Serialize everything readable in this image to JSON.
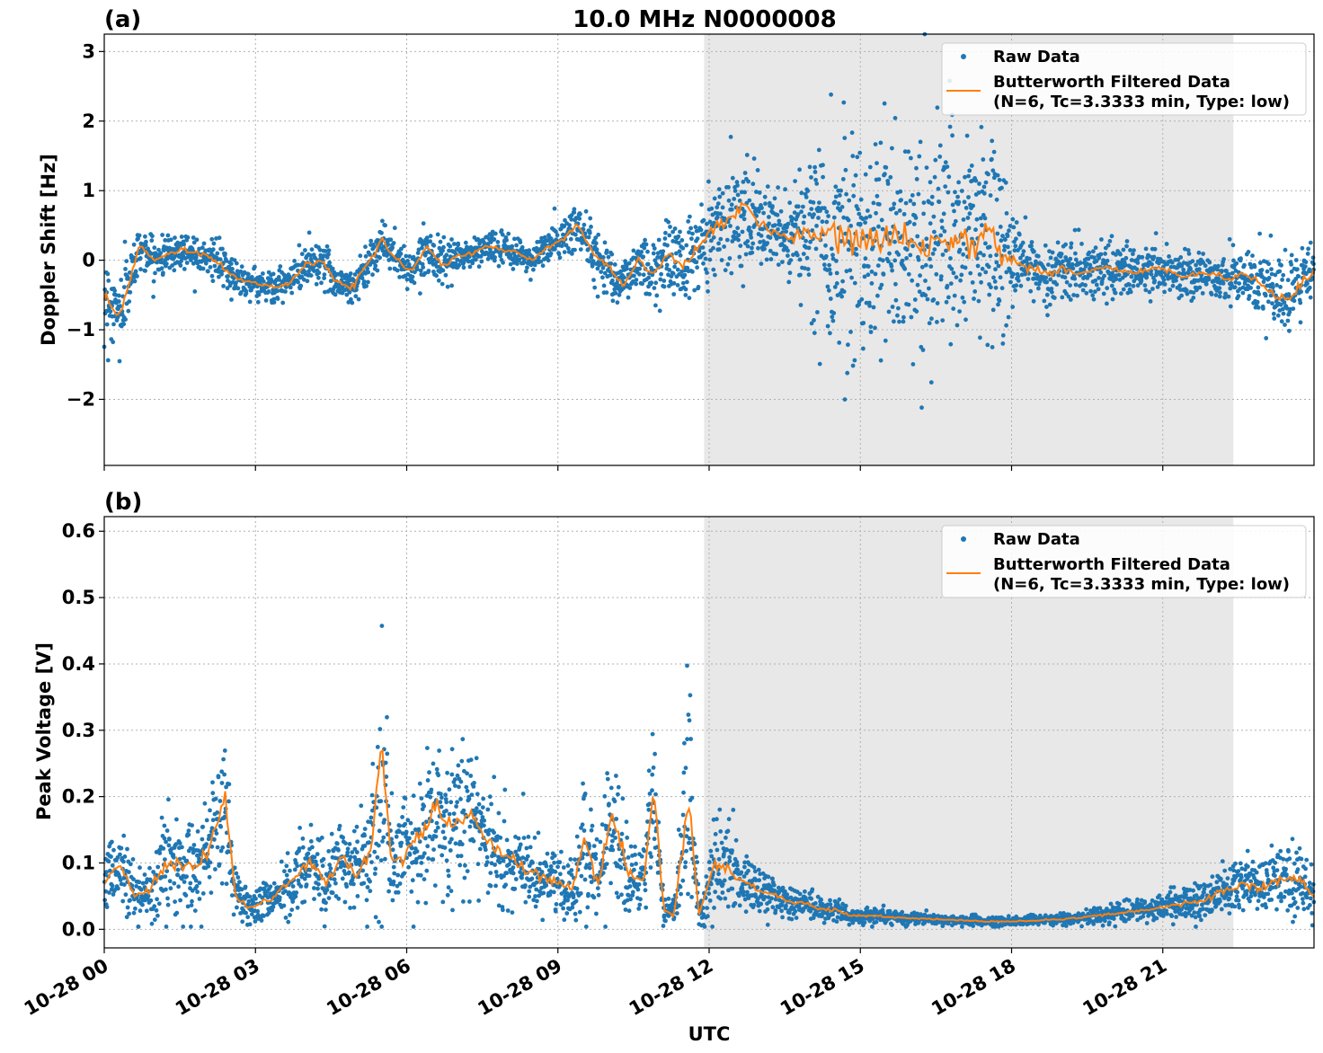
{
  "figure": {
    "title": "10.0 MHz N0000008",
    "xlabel": "UTC"
  },
  "colors": {
    "raw": "#1f77b4",
    "filtered": "#ff7f0e",
    "shade": "#e8e8e8"
  },
  "chart_data": [
    {
      "type": "scatter",
      "panel_label": "(a)",
      "ylabel": "Doppler Shift [Hz]",
      "xlim": [
        0,
        24
      ],
      "ylim": [
        -2.95,
        3.25
      ],
      "yticks": [
        -2,
        -1,
        0,
        1,
        2,
        3
      ],
      "ytick_labels": [
        "−2",
        "−1",
        "0",
        "1",
        "2",
        "3"
      ],
      "xticks": [
        0,
        3,
        6,
        9,
        12,
        15,
        18,
        21
      ],
      "xtick_labels": [
        "10-28 00",
        "10-28 03",
        "10-28 06",
        "10-28 09",
        "10-28 12",
        "10-28 15",
        "10-28 18",
        "10-28 21"
      ],
      "x_unit": "hours UTC on 10-28",
      "shaded_span": [
        11.9,
        22.4
      ],
      "grid": true,
      "legend": {
        "position": "top-right",
        "entries": [
          {
            "name": "Raw Data",
            "marker": "dot"
          },
          {
            "name": "Butterworth Filtered Data\n(N=6, Tc=3.3333 min, Type: low)",
            "marker": "line"
          }
        ]
      },
      "series": [
        {
          "name": "Raw Data",
          "kind": "scatter",
          "x": [
            0.0,
            0.3,
            0.5,
            0.7,
            1.0,
            1.3,
            1.6,
            1.9,
            2.2,
            2.5,
            2.8,
            3.1,
            3.4,
            3.7,
            4.0,
            4.3,
            4.6,
            4.9,
            5.2,
            5.5,
            5.8,
            6.1,
            6.4,
            6.7,
            7.0,
            7.3,
            7.6,
            7.9,
            8.2,
            8.5,
            8.8,
            9.1,
            9.4,
            9.7,
            10.0,
            10.3,
            10.6,
            10.9,
            11.2,
            11.5,
            11.8,
            12.1,
            12.4,
            12.7,
            13.0,
            13.3,
            13.6,
            13.9,
            14.2,
            14.5,
            14.8,
            15.1,
            15.4,
            15.7,
            16.0,
            16.3,
            16.6,
            16.9,
            17.2,
            17.5,
            17.8,
            18.1,
            18.4,
            18.7,
            19.0,
            19.3,
            19.6,
            19.9,
            20.2,
            20.5,
            20.8,
            21.1,
            21.4,
            21.7,
            22.0,
            22.3,
            22.6,
            22.9,
            23.2,
            23.5,
            23.8,
            24.0
          ],
          "y": [
            -0.5,
            -0.8,
            -0.3,
            0.2,
            0.0,
            0.1,
            0.15,
            0.1,
            0.0,
            -0.2,
            -0.3,
            -0.35,
            -0.4,
            -0.3,
            -0.05,
            0.0,
            -0.3,
            -0.4,
            -0.1,
            0.3,
            0.0,
            -0.15,
            0.2,
            -0.1,
            0.05,
            0.1,
            0.2,
            0.15,
            0.1,
            0.0,
            0.2,
            0.3,
            0.5,
            0.1,
            -0.1,
            -0.35,
            0.0,
            -0.2,
            0.1,
            -0.1,
            0.2,
            0.5,
            0.6,
            0.8,
            0.5,
            0.4,
            0.3,
            0.4,
            0.35,
            0.3,
            0.35,
            0.2,
            0.3,
            0.35,
            0.3,
            0.2,
            0.3,
            0.4,
            0.2,
            0.45,
            0.1,
            -0.05,
            -0.1,
            -0.2,
            -0.1,
            -0.2,
            -0.15,
            -0.1,
            -0.15,
            -0.2,
            -0.1,
            -0.15,
            -0.25,
            -0.2,
            -0.2,
            -0.3,
            -0.2,
            -0.3,
            -0.5,
            -0.6,
            -0.3,
            -0.2
          ],
          "spread": [
            0.6,
            0.7,
            0.5,
            0.3,
            0.3,
            0.3,
            0.3,
            0.3,
            0.3,
            0.3,
            0.25,
            0.25,
            0.25,
            0.3,
            0.35,
            0.35,
            0.3,
            0.3,
            0.35,
            0.3,
            0.3,
            0.3,
            0.3,
            0.3,
            0.25,
            0.25,
            0.25,
            0.25,
            0.25,
            0.25,
            0.3,
            0.35,
            0.45,
            0.4,
            0.4,
            0.4,
            0.4,
            0.5,
            0.6,
            0.6,
            0.6,
            0.7,
            0.8,
            0.8,
            0.7,
            0.6,
            0.7,
            0.9,
            1.6,
            1.8,
            1.8,
            1.8,
            1.8,
            1.8,
            1.8,
            1.8,
            1.8,
            1.8,
            1.8,
            1.8,
            1.5,
            0.6,
            0.5,
            0.5,
            0.5,
            0.5,
            0.4,
            0.4,
            0.4,
            0.4,
            0.4,
            0.4,
            0.4,
            0.35,
            0.4,
            0.4,
            0.45,
            0.5,
            0.5,
            0.6,
            0.6,
            0.5
          ]
        },
        {
          "name": "Butterworth Filtered Data\n(N=6, Tc=3.3333 min, Type: low)",
          "kind": "line",
          "x": [
            0.0,
            0.3,
            0.5,
            0.7,
            1.0,
            1.3,
            1.6,
            1.9,
            2.2,
            2.5,
            2.8,
            3.1,
            3.4,
            3.7,
            4.0,
            4.3,
            4.6,
            4.9,
            5.2,
            5.5,
            5.8,
            6.1,
            6.4,
            6.7,
            7.0,
            7.3,
            7.6,
            7.9,
            8.2,
            8.5,
            8.8,
            9.1,
            9.4,
            9.7,
            10.0,
            10.3,
            10.6,
            10.9,
            11.2,
            11.5,
            11.8,
            12.1,
            12.4,
            12.7,
            13.0,
            13.3,
            13.6,
            13.9,
            14.2,
            14.5,
            14.8,
            15.1,
            15.4,
            15.7,
            16.0,
            16.3,
            16.6,
            16.9,
            17.2,
            17.5,
            17.8,
            18.1,
            18.4,
            18.7,
            19.0,
            19.3,
            19.6,
            19.9,
            20.2,
            20.5,
            20.8,
            21.1,
            21.4,
            21.7,
            22.0,
            22.3,
            22.6,
            22.9,
            23.2,
            23.5,
            23.8,
            24.0
          ],
          "y": [
            -0.5,
            -0.8,
            -0.3,
            0.2,
            0.0,
            0.1,
            0.15,
            0.1,
            0.0,
            -0.2,
            -0.3,
            -0.35,
            -0.4,
            -0.3,
            -0.05,
            0.0,
            -0.3,
            -0.4,
            -0.1,
            0.3,
            0.0,
            -0.15,
            0.2,
            -0.1,
            0.05,
            0.1,
            0.2,
            0.15,
            0.1,
            0.0,
            0.2,
            0.3,
            0.5,
            0.1,
            -0.1,
            -0.35,
            0.0,
            -0.2,
            0.1,
            -0.1,
            0.2,
            0.5,
            0.6,
            0.8,
            0.5,
            0.4,
            0.3,
            0.4,
            0.35,
            0.3,
            0.35,
            0.2,
            0.3,
            0.35,
            0.3,
            0.2,
            0.3,
            0.4,
            0.2,
            0.45,
            0.1,
            -0.05,
            -0.1,
            -0.2,
            -0.1,
            -0.2,
            -0.15,
            -0.1,
            -0.15,
            -0.2,
            -0.1,
            -0.15,
            -0.25,
            -0.2,
            -0.2,
            -0.3,
            -0.2,
            -0.3,
            -0.5,
            -0.6,
            -0.3,
            -0.2
          ]
        }
      ]
    },
    {
      "type": "scatter",
      "panel_label": "(b)",
      "ylabel": "Peak Voltage [V]",
      "xlim": [
        0,
        24
      ],
      "ylim": [
        -0.028,
        0.622
      ],
      "yticks": [
        0.0,
        0.1,
        0.2,
        0.3,
        0.4,
        0.5,
        0.6
      ],
      "ytick_labels": [
        "0.0",
        "0.1",
        "0.2",
        "0.3",
        "0.4",
        "0.5",
        "0.6"
      ],
      "xticks": [
        0,
        3,
        6,
        9,
        12,
        15,
        18,
        21
      ],
      "xtick_labels": [
        "10-28 00",
        "10-28 03",
        "10-28 06",
        "10-28 09",
        "10-28 12",
        "10-28 15",
        "10-28 18",
        "10-28 21"
      ],
      "x_unit": "hours UTC on 10-28",
      "shaded_span": [
        11.9,
        22.4
      ],
      "grid": true,
      "legend": {
        "position": "top-right",
        "entries": [
          {
            "name": "Raw Data",
            "marker": "dot"
          },
          {
            "name": "Butterworth Filtered Data\n(N=6, Tc=3.3333 min, Type: low)",
            "marker": "line"
          }
        ]
      },
      "series": [
        {
          "name": "Raw Data",
          "kind": "scatter",
          "x": [
            0.0,
            0.3,
            0.6,
            0.9,
            1.2,
            1.5,
            1.8,
            2.1,
            2.4,
            2.6,
            2.9,
            3.2,
            3.5,
            3.8,
            4.1,
            4.4,
            4.7,
            5.0,
            5.3,
            5.5,
            5.7,
            6.0,
            6.3,
            6.6,
            6.9,
            7.2,
            7.5,
            7.8,
            8.1,
            8.4,
            8.7,
            9.0,
            9.3,
            9.5,
            9.8,
            10.1,
            10.4,
            10.7,
            10.9,
            11.1,
            11.3,
            11.6,
            11.8,
            12.1,
            12.4,
            12.7,
            13.0,
            13.3,
            13.6,
            13.9,
            14.2,
            14.5,
            14.8,
            15.1,
            15.4,
            15.7,
            16.0,
            16.3,
            16.6,
            16.9,
            17.2,
            17.5,
            17.8,
            18.1,
            18.4,
            18.7,
            19.0,
            19.3,
            19.6,
            19.9,
            20.2,
            20.5,
            20.8,
            21.1,
            21.4,
            21.7,
            22.0,
            22.3,
            22.6,
            22.9,
            23.2,
            23.5,
            23.8,
            24.0
          ],
          "y": [
            0.07,
            0.1,
            0.05,
            0.06,
            0.1,
            0.1,
            0.09,
            0.12,
            0.2,
            0.05,
            0.03,
            0.04,
            0.06,
            0.08,
            0.1,
            0.07,
            0.11,
            0.08,
            0.12,
            0.28,
            0.1,
            0.12,
            0.15,
            0.18,
            0.15,
            0.18,
            0.14,
            0.12,
            0.1,
            0.09,
            0.08,
            0.07,
            0.06,
            0.14,
            0.07,
            0.18,
            0.08,
            0.07,
            0.22,
            0.03,
            0.02,
            0.2,
            0.02,
            0.1,
            0.09,
            0.07,
            0.06,
            0.05,
            0.04,
            0.04,
            0.03,
            0.03,
            0.02,
            0.02,
            0.02,
            0.018,
            0.017,
            0.016,
            0.015,
            0.014,
            0.013,
            0.012,
            0.012,
            0.012,
            0.013,
            0.014,
            0.015,
            0.017,
            0.02,
            0.022,
            0.025,
            0.028,
            0.03,
            0.035,
            0.04,
            0.04,
            0.05,
            0.06,
            0.07,
            0.06,
            0.07,
            0.08,
            0.07,
            0.05
          ],
          "spread": [
            0.06,
            0.07,
            0.05,
            0.05,
            0.08,
            0.08,
            0.07,
            0.1,
            0.12,
            0.04,
            0.03,
            0.04,
            0.05,
            0.06,
            0.07,
            0.06,
            0.08,
            0.07,
            0.1,
            0.25,
            0.08,
            0.09,
            0.1,
            0.12,
            0.11,
            0.12,
            0.1,
            0.09,
            0.08,
            0.07,
            0.06,
            0.05,
            0.05,
            0.12,
            0.06,
            0.16,
            0.06,
            0.06,
            0.14,
            0.02,
            0.02,
            0.2,
            0.02,
            0.09,
            0.07,
            0.05,
            0.04,
            0.03,
            0.03,
            0.02,
            0.02,
            0.02,
            0.015,
            0.015,
            0.012,
            0.01,
            0.01,
            0.01,
            0.008,
            0.008,
            0.008,
            0.007,
            0.007,
            0.007,
            0.008,
            0.009,
            0.01,
            0.012,
            0.014,
            0.015,
            0.018,
            0.02,
            0.02,
            0.025,
            0.03,
            0.03,
            0.04,
            0.05,
            0.06,
            0.05,
            0.06,
            0.07,
            0.06,
            0.04
          ]
        },
        {
          "name": "Butterworth Filtered Data\n(N=6, Tc=3.3333 min, Type: low)",
          "kind": "line",
          "x": [
            0.0,
            0.3,
            0.6,
            0.9,
            1.2,
            1.5,
            1.8,
            2.1,
            2.4,
            2.6,
            2.9,
            3.2,
            3.5,
            3.8,
            4.1,
            4.4,
            4.7,
            5.0,
            5.3,
            5.5,
            5.7,
            6.0,
            6.3,
            6.6,
            6.9,
            7.2,
            7.5,
            7.8,
            8.1,
            8.4,
            8.7,
            9.0,
            9.3,
            9.5,
            9.8,
            10.1,
            10.4,
            10.7,
            10.9,
            11.1,
            11.3,
            11.6,
            11.8,
            12.1,
            12.4,
            12.7,
            13.0,
            13.3,
            13.6,
            13.9,
            14.2,
            14.5,
            14.8,
            15.1,
            15.4,
            15.7,
            16.0,
            16.3,
            16.6,
            16.9,
            17.2,
            17.5,
            17.8,
            18.1,
            18.4,
            18.7,
            19.0,
            19.3,
            19.6,
            19.9,
            20.2,
            20.5,
            20.8,
            21.1,
            21.4,
            21.7,
            22.0,
            22.3,
            22.6,
            22.9,
            23.2,
            23.5,
            23.8,
            24.0
          ],
          "y": [
            0.07,
            0.1,
            0.05,
            0.06,
            0.1,
            0.1,
            0.09,
            0.12,
            0.2,
            0.05,
            0.03,
            0.04,
            0.06,
            0.08,
            0.1,
            0.07,
            0.11,
            0.08,
            0.12,
            0.28,
            0.1,
            0.12,
            0.15,
            0.18,
            0.15,
            0.18,
            0.14,
            0.12,
            0.1,
            0.09,
            0.08,
            0.07,
            0.06,
            0.14,
            0.07,
            0.18,
            0.08,
            0.07,
            0.22,
            0.03,
            0.02,
            0.2,
            0.02,
            0.1,
            0.09,
            0.07,
            0.06,
            0.05,
            0.04,
            0.04,
            0.03,
            0.03,
            0.02,
            0.02,
            0.02,
            0.018,
            0.017,
            0.016,
            0.015,
            0.014,
            0.013,
            0.012,
            0.012,
            0.012,
            0.013,
            0.014,
            0.015,
            0.017,
            0.02,
            0.022,
            0.025,
            0.028,
            0.03,
            0.035,
            0.04,
            0.04,
            0.05,
            0.06,
            0.07,
            0.06,
            0.07,
            0.08,
            0.07,
            0.05
          ]
        }
      ]
    }
  ]
}
